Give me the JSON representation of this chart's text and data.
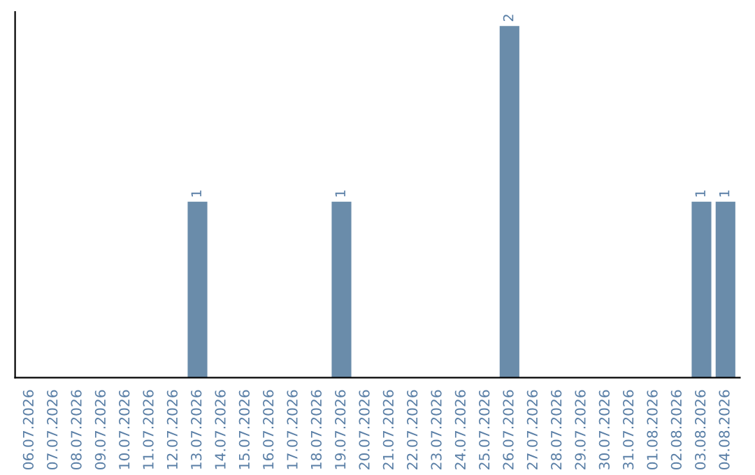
{
  "chart_data": {
    "type": "bar",
    "categories": [
      "06.07.2026",
      "07.07.2026",
      "08.07.2026",
      "09.07.2026",
      "10.07.2026",
      "11.07.2026",
      "12.07.2026",
      "13.07.2026",
      "14.07.2026",
      "15.07.2026",
      "16.07.2026",
      "17.07.2026",
      "18.07.2026",
      "19.07.2026",
      "20.07.2026",
      "21.07.2026",
      "22.07.2026",
      "23.07.2026",
      "24.07.2026",
      "25.07.2026",
      "26.07.2026",
      "27.07.2026",
      "28.07.2026",
      "29.07.2026",
      "30.07.2026",
      "31.07.2026",
      "01.08.2026",
      "02.08.2026",
      "03.08.2026",
      "04.08.2026"
    ],
    "values": [
      0,
      0,
      0,
      0,
      0,
      0,
      0,
      1,
      0,
      0,
      0,
      0,
      0,
      1,
      0,
      0,
      0,
      0,
      0,
      0,
      2,
      0,
      0,
      0,
      0,
      0,
      0,
      0,
      1,
      1
    ],
    "value_labels": [
      null,
      null,
      null,
      null,
      null,
      null,
      null,
      "1",
      null,
      null,
      null,
      null,
      null,
      "1",
      null,
      null,
      null,
      null,
      null,
      null,
      "2",
      null,
      null,
      null,
      null,
      null,
      null,
      null,
      "1",
      "1"
    ],
    "color": "#6a8caa",
    "grid": false,
    "legend": false
  }
}
